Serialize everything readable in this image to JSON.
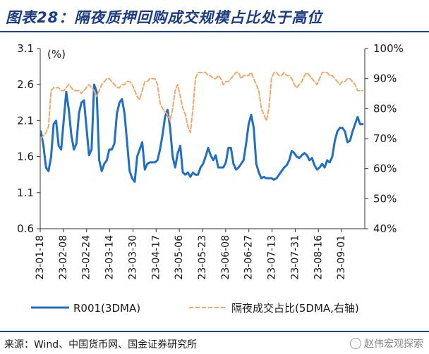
{
  "title": "图表28：隔夜质押回购成交规模占比处于高位",
  "source": "来源：Wind、中国货币网、国金证券研究所",
  "watermark": "赵伟宏观探索",
  "chart_data": {
    "type": "line",
    "title": "图表28：隔夜质押回购成交规模占比处于高位",
    "y_left_unit": "(%)",
    "y_left_lim": [
      0.6,
      3.1
    ],
    "y_left_ticks": [
      "0.6",
      "1.1",
      "1.6",
      "2.1",
      "2.6",
      "3.1"
    ],
    "y_right_lim": [
      40,
      100
    ],
    "y_right_ticks": [
      "40%",
      "50%",
      "60%",
      "70%",
      "80%",
      "90%",
      "100%"
    ],
    "x_tick_labels": [
      "23-01-18",
      "23-02-08",
      "23-02-24",
      "23-03-14",
      "23-03-30",
      "23-04-17",
      "23-05-06",
      "23-05-23",
      "23-06-08",
      "23-06-27",
      "23-07-13",
      "23-07-31",
      "23-08-16",
      "23-09-01"
    ],
    "series": [
      {
        "name": "R001(3DMA)",
        "axis": "left",
        "style": "solid",
        "color": "#1f6fc5",
        "values": [
          1.95,
          1.75,
          1.45,
          1.4,
          1.6,
          2.05,
          2.1,
          1.75,
          1.7,
          2.1,
          2.5,
          2.25,
          1.9,
          1.7,
          1.78,
          2.2,
          2.35,
          2.38,
          2.0,
          1.62,
          1.7,
          2.6,
          2.5,
          1.55,
          1.4,
          1.5,
          1.55,
          1.7,
          1.7,
          1.78,
          2.2,
          2.35,
          2.4,
          2.2,
          1.8,
          1.4,
          1.3,
          1.25,
          1.6,
          1.7,
          1.8,
          1.42,
          1.5,
          1.52,
          1.52,
          1.52,
          1.55,
          1.7,
          1.9,
          2.15,
          2.25,
          2.0,
          1.6,
          1.45,
          1.65,
          1.75,
          1.38,
          1.35,
          1.38,
          1.32,
          1.38,
          1.35,
          1.35,
          1.45,
          1.5,
          1.6,
          1.72,
          1.62,
          1.55,
          1.62,
          1.45,
          1.45,
          1.45,
          1.52,
          1.72,
          1.72,
          1.5,
          1.42,
          1.45,
          1.5,
          1.55,
          1.78,
          2.05,
          2.18,
          2.0,
          1.5,
          1.38,
          1.3,
          1.32,
          1.3,
          1.3,
          1.3,
          1.28,
          1.3,
          1.35,
          1.4,
          1.45,
          1.48,
          1.55,
          1.68,
          1.65,
          1.6,
          1.58,
          1.62,
          1.65,
          1.62,
          1.55,
          1.58,
          1.48,
          1.42,
          1.45,
          1.5,
          1.45,
          1.55,
          1.52,
          1.6,
          1.82,
          1.95,
          2.0,
          2.0,
          1.95,
          1.8,
          1.82,
          1.95,
          2.05,
          2.15,
          2.05,
          2.05
        ]
      },
      {
        "name": "隔夜成交占比(5DMA,右轴)",
        "axis": "right",
        "style": "dashed",
        "color": "#f2a865",
        "values": [
          70,
          71,
          72,
          74,
          86,
          87,
          87,
          87,
          86,
          86,
          87,
          88,
          87,
          86,
          86,
          86,
          85,
          86,
          87,
          88,
          87,
          86,
          84,
          86,
          88,
          89,
          90,
          90,
          89,
          88,
          87,
          87,
          88,
          88,
          89,
          89,
          88,
          86,
          84,
          83,
          86,
          89,
          89,
          90,
          90,
          90,
          88,
          82,
          80,
          79,
          78,
          76,
          80,
          86,
          88,
          84,
          80,
          78,
          74,
          72,
          80,
          90,
          92,
          92,
          92,
          92,
          91,
          91,
          90,
          90,
          91,
          90,
          88,
          89,
          89,
          90,
          91,
          92,
          92,
          90,
          91,
          91,
          91,
          92,
          90,
          88,
          86,
          80,
          78,
          76,
          80,
          90,
          92,
          92,
          91,
          91,
          92,
          91,
          91,
          90,
          88,
          87,
          88,
          89,
          91,
          92,
          91,
          90,
          89,
          88,
          90,
          92,
          92,
          92,
          91,
          91,
          90,
          89,
          88,
          89,
          89,
          90,
          90,
          89,
          88,
          86,
          86,
          86
        ]
      }
    ],
    "legend_position": "bottom"
  }
}
